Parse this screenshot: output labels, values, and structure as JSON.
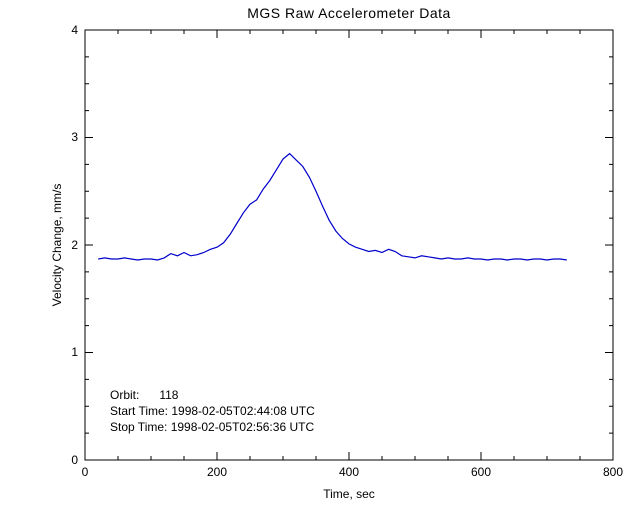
{
  "chart_data": {
    "type": "line",
    "title": "MGS Raw Accelerometer Data",
    "xlabel": "Time, sec",
    "ylabel": "Velocity Change, mm/s",
    "xlim": [
      0,
      800
    ],
    "ylim": [
      0,
      4
    ],
    "xticks": [
      0,
      200,
      400,
      600,
      800
    ],
    "yticks": [
      0,
      1,
      2,
      3,
      4
    ],
    "xtick_labels": [
      "0",
      "200",
      "400",
      "600",
      "800"
    ],
    "ytick_labels": [
      "0",
      "1",
      "2",
      "3",
      "4"
    ],
    "x_minor_step": 50,
    "y_minor_step": 0.25,
    "grid": false,
    "line_color": "#0000cc",
    "axis_color": "#000000",
    "series": [
      {
        "name": "velocity-change",
        "x": [
          20,
          30,
          40,
          50,
          60,
          70,
          80,
          90,
          100,
          110,
          120,
          130,
          140,
          150,
          160,
          170,
          180,
          190,
          200,
          210,
          220,
          230,
          240,
          250,
          260,
          270,
          280,
          290,
          300,
          310,
          320,
          330,
          340,
          350,
          360,
          370,
          380,
          390,
          400,
          410,
          420,
          430,
          440,
          450,
          460,
          470,
          480,
          490,
          500,
          510,
          520,
          530,
          540,
          550,
          560,
          570,
          580,
          590,
          600,
          610,
          620,
          630,
          640,
          650,
          660,
          670,
          680,
          690,
          700,
          710,
          720,
          730
        ],
        "y": [
          1.87,
          1.88,
          1.87,
          1.87,
          1.88,
          1.87,
          1.86,
          1.87,
          1.87,
          1.86,
          1.88,
          1.92,
          1.9,
          1.93,
          1.9,
          1.91,
          1.93,
          1.96,
          1.98,
          2.02,
          2.1,
          2.2,
          2.3,
          2.38,
          2.42,
          2.52,
          2.6,
          2.7,
          2.8,
          2.85,
          2.79,
          2.73,
          2.63,
          2.5,
          2.36,
          2.23,
          2.13,
          2.06,
          2.01,
          1.98,
          1.96,
          1.94,
          1.95,
          1.93,
          1.96,
          1.94,
          1.9,
          1.89,
          1.88,
          1.9,
          1.89,
          1.88,
          1.87,
          1.88,
          1.87,
          1.87,
          1.88,
          1.87,
          1.87,
          1.86,
          1.87,
          1.87,
          1.86,
          1.87,
          1.87,
          1.86,
          1.87,
          1.87,
          1.86,
          1.87,
          1.87,
          1.86
        ]
      }
    ],
    "annotations": [
      {
        "text": "Orbit:      118",
        "x": 40,
        "y": 0.6
      },
      {
        "text": "Start Time: 1998-02-05T02:44:08 UTC",
        "x": 40,
        "y": 0.45
      },
      {
        "text": "Stop Time: 1998-02-05T02:56:36 UTC",
        "x": 40,
        "y": 0.3
      }
    ]
  }
}
